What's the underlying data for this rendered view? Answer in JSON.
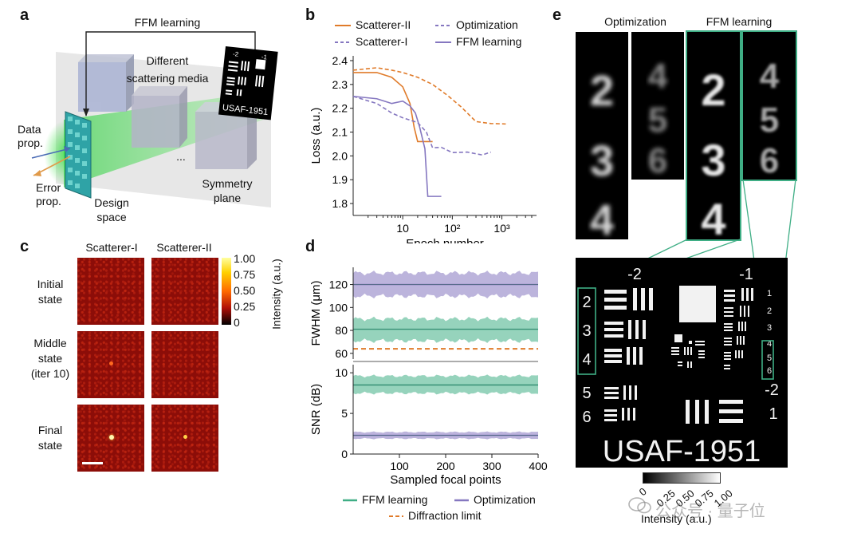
{
  "panel_labels": {
    "a": "a",
    "b": "b",
    "c": "c",
    "d": "d",
    "e": "e"
  },
  "panel_a": {
    "ffm_label": "FFM learning",
    "media_label_line1": "Different",
    "media_label_line2": "scattering media",
    "data_prop_line1": "Data",
    "data_prop_line2": "prop.",
    "error_prop_line1": "Error",
    "error_prop_line2": "prop.",
    "design_line1": "Design",
    "design_line2": "space",
    "symmetry_line1": "Symmetry",
    "symmetry_line2": "plane",
    "ellipsis": "...",
    "usaf_label": "USAF-1951",
    "chart_top": "-2",
    "chart_right": "-1",
    "colors": {
      "beam": "#5fdc5a",
      "cube": "#aab0c8",
      "plane": "#cfcfcf"
    }
  },
  "panel_c": {
    "col1": "Scatterer-I",
    "col2": "Scatterer-II",
    "row1_line1": "Initial",
    "row1_line2": "state",
    "row2_line1": "Middle",
    "row2_line2": "state",
    "row2_line3": "(iter 10)",
    "row3_line1": "Final",
    "row3_line2": "state",
    "colorbar_label": "Intensity (a.u.)",
    "colorbar_ticks": [
      "1.00",
      "0.75",
      "0.50",
      "0.25",
      "0"
    ]
  },
  "panel_e": {
    "opt_label": "Optimization",
    "ffm_label": "FFM learning",
    "digits_col1": [
      "2",
      "3",
      "4"
    ],
    "digits_col2": [
      "4",
      "5",
      "6"
    ],
    "digits_col3": [
      "2",
      "3",
      "4"
    ],
    "digits_col4": [
      "4",
      "5",
      "6"
    ],
    "usaf_text": "USAF-1951",
    "target_labels": {
      "tl": "-2",
      "tr": "-1",
      "br": "-2",
      "br2": "1"
    },
    "left_digits": [
      "2",
      "3",
      "4",
      "5",
      "6"
    ],
    "right_digits": [
      "1",
      "2",
      "3",
      "4",
      "5",
      "6"
    ],
    "colorbar_label": "Intensity (a.u.)",
    "colorbar_ticks": [
      "0",
      "0.25",
      "0.50",
      "0.75",
      "1.00"
    ]
  },
  "watermark": "公众号 · 量子位",
  "chart_data": [
    {
      "type": "line",
      "title": "",
      "xlabel": "Epoch number",
      "ylabel": "Loss (a.u.)",
      "xscale": "log",
      "xlim": [
        1,
        5000
      ],
      "ylim": [
        1.75,
        2.42
      ],
      "xticks": [
        "10",
        "10²",
        "10³"
      ],
      "yticks": [
        "1.8",
        "1.9",
        "2.0",
        "2.1",
        "2.2",
        "2.3",
        "2.4"
      ],
      "legend": [
        "Scatterer-II",
        "Optimization",
        "Scatterer-I",
        "FFM learning"
      ],
      "series": [
        {
          "name": "Scatterer-II Optimization",
          "color": "#e07b2a",
          "dash": true,
          "x": [
            1,
            3,
            6,
            10,
            20,
            40,
            80,
            150,
            300,
            600,
            1200
          ],
          "y": [
            2.36,
            2.37,
            2.36,
            2.35,
            2.33,
            2.3,
            2.26,
            2.2,
            2.15,
            2.13,
            2.14
          ]
        },
        {
          "name": "Scatterer-II FFM learning",
          "color": "#e07b2a",
          "dash": false,
          "x": [
            1,
            3,
            6,
            10,
            14,
            17,
            20,
            30,
            40
          ],
          "y": [
            2.35,
            2.35,
            2.33,
            2.29,
            2.22,
            2.12,
            2.06,
            2.06,
            2.06
          ]
        },
        {
          "name": "Scatterer-I Optimization",
          "color": "#8577c0",
          "dash": true,
          "x": [
            1,
            3,
            6,
            10,
            20,
            30,
            40,
            60,
            100,
            200,
            400,
            600
          ],
          "y": [
            2.25,
            2.22,
            2.18,
            2.16,
            2.14,
            2.1,
            2.04,
            2.03,
            2.02,
            2.01,
            2.01,
            2.01
          ]
        },
        {
          "name": "Scatterer-I FFM learning",
          "color": "#8577c0",
          "dash": false,
          "x": [
            1,
            3,
            6,
            10,
            14,
            18,
            22,
            28,
            32,
            40,
            60
          ],
          "y": [
            2.25,
            2.24,
            2.22,
            2.23,
            2.21,
            2.18,
            2.12,
            2.03,
            1.83,
            1.83,
            1.83
          ]
        }
      ]
    },
    {
      "type": "area",
      "xlabel": "Sampled focal points",
      "ylabel_top": "FWHM (μm)",
      "ylabel_bottom": "SNR (dB)",
      "xlim": [
        0,
        400
      ],
      "xticks": [
        "100",
        "200",
        "300",
        "400"
      ],
      "ylim_top": [
        55,
        135
      ],
      "yticks_top": [
        "60",
        "80",
        "100",
        "120"
      ],
      "ylim_bottom": [
        0,
        11
      ],
      "yticks_bottom": [
        "0",
        "5",
        "10"
      ],
      "legend": [
        "FFM learning",
        "Optimization",
        "Diffraction limit"
      ],
      "fwhm": {
        "optimization": {
          "mean": 120,
          "low": 110,
          "high": 130,
          "color": "#8577c0"
        },
        "ffm": {
          "mean": 81,
          "low": 71,
          "high": 90,
          "color": "#3fae85"
        },
        "diffraction_limit": {
          "value": 64,
          "color": "#e07b2a"
        }
      },
      "snr": {
        "ffm": {
          "mean": 8.5,
          "low": 7.5,
          "high": 9.6,
          "color": "#3fae85"
        },
        "optimization": {
          "mean": 2.3,
          "low": 1.9,
          "high": 2.7,
          "color": "#8577c0"
        }
      }
    }
  ]
}
